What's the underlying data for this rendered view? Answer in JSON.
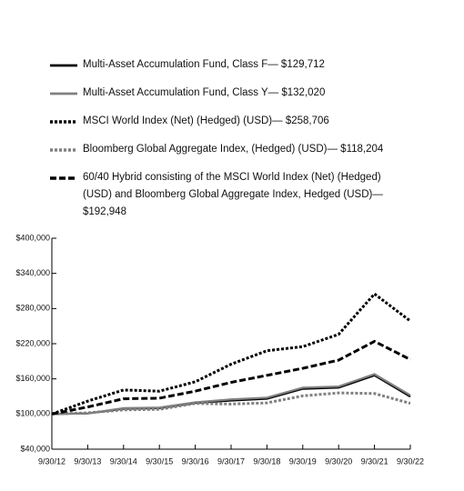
{
  "chart_data": {
    "type": "line",
    "categories": [
      "9/30/12",
      "9/30/13",
      "9/30/14",
      "9/30/15",
      "9/30/16",
      "9/30/17",
      "9/30/18",
      "9/30/19",
      "9/30/20",
      "9/30/21",
      "9/30/22"
    ],
    "series": [
      {
        "name": "Multi-Asset Accumulation Fund, Class F— $129,712",
        "color": "#000000",
        "style": "solid",
        "values": [
          100000,
          101000,
          109000,
          110000,
          119000,
          123000,
          126000,
          143000,
          145000,
          166000,
          129712
        ]
      },
      {
        "name": "Multi-Asset Accumulation Fund, Class Y— $132,020",
        "color": "#808080",
        "style": "solid",
        "values": [
          100000,
          101000,
          110000,
          111000,
          120000,
          125000,
          128000,
          145000,
          147000,
          168000,
          132020
        ]
      },
      {
        "name": "MSCI World Index (Net) (Hedged) (USD)— $258,706",
        "color": "#000000",
        "style": "dotted",
        "values": [
          100000,
          122000,
          141000,
          139000,
          155000,
          185000,
          208000,
          215000,
          236000,
          305000,
          258706
        ]
      },
      {
        "name": "Bloomberg Global Aggregate Index, (Hedged) (USD)— $118,204",
        "color": "#808080",
        "style": "dotted",
        "values": [
          100000,
          102000,
          107000,
          108000,
          118000,
          117000,
          119000,
          131000,
          136000,
          135000,
          118204
        ]
      },
      {
        "name": "60/40 Hybrid consisting of the MSCI World Index (Net) (Hedged) (USD) and Bloomberg Global Aggregate Index, Hedged (USD)— $192,948",
        "color": "#000000",
        "style": "dashed",
        "values": [
          100000,
          112000,
          126000,
          127000,
          139000,
          154000,
          166000,
          178000,
          192000,
          224000,
          192948
        ]
      }
    ],
    "ylim": [
      40000,
      400000
    ],
    "yticks": [
      {
        "value": 40000,
        "label": "$40,000"
      },
      {
        "value": 100000,
        "label": "$100,000"
      },
      {
        "value": 160000,
        "label": "$160,000"
      },
      {
        "value": 220000,
        "label": "$220,000"
      },
      {
        "value": 280000,
        "label": "$280,000"
      },
      {
        "value": 340000,
        "label": "$340,000"
      },
      {
        "value": 400000,
        "label": "$400,000"
      }
    ]
  }
}
